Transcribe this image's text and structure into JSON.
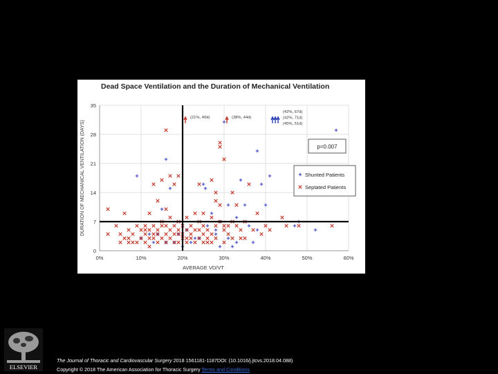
{
  "chart_data": {
    "type": "scatter",
    "title": "Dead Space Ventilation and the Duration of Mechanical Ventilation",
    "xlabel": "AVERAGE VD/VT",
    "ylabel": "DURATION OF MECHANICAL VENTILATION (DAYS)",
    "xlim": [
      0,
      60
    ],
    "ylim": [
      0,
      35
    ],
    "x_ticks": [
      "0%",
      "10%",
      "20%",
      "30%",
      "40%",
      "50%",
      "60%"
    ],
    "x_tick_values": [
      0,
      10,
      20,
      30,
      40,
      50,
      60
    ],
    "y_ticks": [
      "0",
      "7",
      "14",
      "21",
      "28",
      "35"
    ],
    "y_tick_values": [
      0,
      7,
      14,
      21,
      28,
      35
    ],
    "grid": true,
    "threshold_lines": {
      "x": 20,
      "y": 7
    },
    "p_value_label": "p=0.007",
    "legend_position": "right",
    "annotations": [
      {
        "text": "(21%, 40d)",
        "arrow_count": 1,
        "arrow_color": "#c0392b",
        "at_x": 21
      },
      {
        "text": "(38%, 44d)",
        "arrow_count": 1,
        "arrow_color": "#c0392b",
        "at_x": 31
      },
      {
        "text": [
          "(42%, 67d)",
          "(42%, 71d)",
          "(45%, 51d)"
        ],
        "arrow_count": 3,
        "arrow_color": "#2b3fb5",
        "at_x": 42
      }
    ],
    "series": [
      {
        "name": "Shunted Patients",
        "marker": "+",
        "color": "#3b3fbf",
        "points": [
          [
            9,
            18
          ],
          [
            16,
            22
          ],
          [
            17,
            15
          ],
          [
            16,
            2
          ],
          [
            18,
            2
          ],
          [
            20,
            1
          ],
          [
            21,
            5
          ],
          [
            22,
            2
          ],
          [
            24,
            3
          ],
          [
            25,
            16
          ],
          [
            25.5,
            15
          ],
          [
            27,
            9
          ],
          [
            28,
            5
          ],
          [
            29,
            1
          ],
          [
            29,
            7
          ],
          [
            30,
            31
          ],
          [
            31,
            11
          ],
          [
            31,
            3
          ],
          [
            32,
            1
          ],
          [
            33,
            8
          ],
          [
            34,
            17
          ],
          [
            35,
            11
          ],
          [
            36,
            6
          ],
          [
            37,
            2
          ],
          [
            38,
            24
          ],
          [
            38,
            5
          ],
          [
            39,
            16
          ],
          [
            40,
            11
          ],
          [
            41,
            18
          ],
          [
            47,
            6
          ],
          [
            48,
            7
          ],
          [
            49,
            16
          ],
          [
            52,
            5
          ],
          [
            57,
            29
          ],
          [
            12,
            4
          ],
          [
            13,
            2
          ],
          [
            15,
            10
          ],
          [
            14,
            4
          ],
          [
            10,
            3
          ],
          [
            19,
            4
          ],
          [
            23,
            3
          ],
          [
            26,
            6
          ],
          [
            28,
            4
          ],
          [
            33,
            2
          ]
        ]
      },
      {
        "name": "Septated Patients",
        "marker": "x",
        "color": "#c0392b",
        "points": [
          [
            2,
            10
          ],
          [
            2,
            4
          ],
          [
            4,
            6
          ],
          [
            5,
            4
          ],
          [
            5,
            2
          ],
          [
            6,
            9
          ],
          [
            6,
            3
          ],
          [
            7,
            5
          ],
          [
            7,
            2
          ],
          [
            8,
            4
          ],
          [
            9,
            6
          ],
          [
            9,
            2
          ],
          [
            10,
            5
          ],
          [
            10,
            3
          ],
          [
            11,
            4
          ],
          [
            11,
            2
          ],
          [
            11,
            6
          ],
          [
            12,
            5
          ],
          [
            12,
            9
          ],
          [
            12,
            1
          ],
          [
            13,
            3
          ],
          [
            13,
            16
          ],
          [
            13,
            6
          ],
          [
            14,
            12
          ],
          [
            14,
            5
          ],
          [
            14,
            2
          ],
          [
            15,
            17
          ],
          [
            15,
            3
          ],
          [
            15,
            7
          ],
          [
            16,
            29
          ],
          [
            16,
            4
          ],
          [
            16,
            10
          ],
          [
            16,
            6
          ],
          [
            17,
            18
          ],
          [
            17,
            8
          ],
          [
            17,
            3
          ],
          [
            17,
            5
          ],
          [
            18,
            2
          ],
          [
            18,
            6
          ],
          [
            18,
            16
          ],
          [
            19,
            4
          ],
          [
            19,
            7
          ],
          [
            19,
            18
          ],
          [
            19,
            5
          ],
          [
            20,
            3
          ],
          [
            20,
            6
          ],
          [
            21,
            5
          ],
          [
            21,
            8
          ],
          [
            21,
            2
          ],
          [
            22,
            4
          ],
          [
            22,
            6
          ],
          [
            23,
            9
          ],
          [
            23,
            2
          ],
          [
            23,
            5
          ],
          [
            24,
            3
          ],
          [
            24,
            7
          ],
          [
            24,
            16
          ],
          [
            25,
            4
          ],
          [
            25,
            9
          ],
          [
            25,
            6
          ],
          [
            26,
            2
          ],
          [
            26,
            5
          ],
          [
            27,
            8
          ],
          [
            27,
            17
          ],
          [
            27,
            4
          ],
          [
            28,
            14
          ],
          [
            28,
            3
          ],
          [
            28,
            6
          ],
          [
            28,
            12
          ],
          [
            29,
            26
          ],
          [
            29,
            25
          ],
          [
            29,
            7
          ],
          [
            29,
            11
          ],
          [
            30,
            22
          ],
          [
            30,
            5
          ],
          [
            30,
            2
          ],
          [
            31,
            4
          ],
          [
            32,
            14
          ],
          [
            32,
            7
          ],
          [
            32,
            3
          ],
          [
            33,
            11
          ],
          [
            33,
            6
          ],
          [
            34,
            5
          ],
          [
            35,
            3
          ],
          [
            35,
            7
          ],
          [
            36,
            16
          ],
          [
            37,
            5
          ],
          [
            38,
            9
          ],
          [
            39,
            4
          ],
          [
            40,
            6
          ],
          [
            41,
            5
          ],
          [
            44,
            8
          ],
          [
            45,
            6
          ],
          [
            48,
            6
          ],
          [
            56,
            6
          ],
          [
            20,
            4
          ],
          [
            22,
            3
          ],
          [
            26,
            3
          ],
          [
            31,
            6
          ],
          [
            19,
            2
          ],
          [
            11,
            5
          ],
          [
            8,
            2
          ],
          [
            7,
            3
          ],
          [
            13,
            4
          ],
          [
            15,
            6
          ],
          [
            18,
            4
          ],
          [
            24,
            5
          ],
          [
            27,
            2
          ],
          [
            30,
            6
          ],
          [
            34,
            3
          ],
          [
            16,
            2
          ],
          [
            14,
            4
          ],
          [
            21,
            3
          ],
          [
            25,
            2
          ],
          [
            12,
            3
          ]
        ]
      }
    ]
  },
  "footer": {
    "journal": "The Journal of Thoracic and Cardiovascular Surgery",
    "citation": " 2018 1561181-1187DOI: (10.1016/j.jtcvs.2018.04.088)",
    "copyright": "Copyright © 2018 The American Association for Thoracic Surgery ",
    "license_link": "Terms and Conditions"
  },
  "logo": {
    "text": "ELSEVIER",
    "icon": "elsevier-tree-icon"
  }
}
